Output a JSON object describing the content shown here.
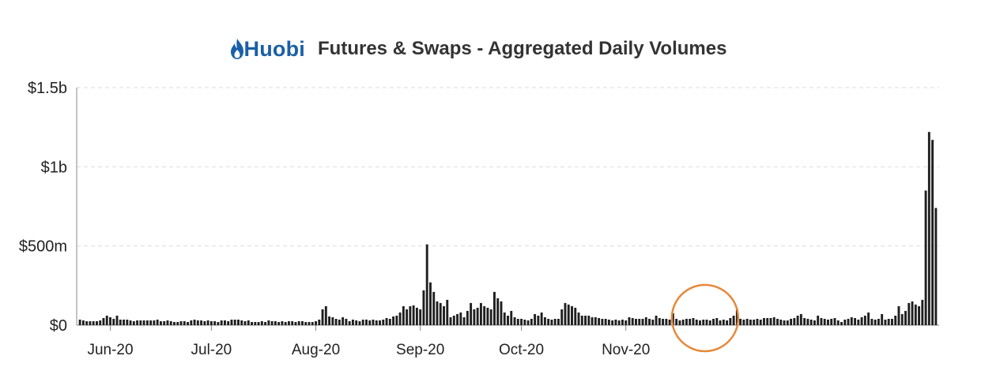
{
  "brand": {
    "name": "Huobi",
    "color": "#1b5fa8",
    "icon": "flame-drop-icon"
  },
  "colors": {
    "bar": "#1f1f1f",
    "highlight": "#e8883a",
    "grid": "#dddddd",
    "axis": "#888888"
  },
  "chart_data": {
    "type": "bar",
    "title": "Futures & Swaps - Aggregated Daily Volumes",
    "xlabel": "",
    "ylabel": "",
    "ylim": [
      0,
      1500
    ],
    "y_unit": "millions USD",
    "yticks": [
      {
        "value": 0,
        "label": "$0"
      },
      {
        "value": 500,
        "label": "$500m"
      },
      {
        "value": 1000,
        "label": "$1b"
      },
      {
        "value": 1500,
        "label": "$1.5b"
      }
    ],
    "grid": "horizontal dashed",
    "x_start": "2020-05-23",
    "xticks": [
      {
        "date": "2020-06-01",
        "label": "Jun-20"
      },
      {
        "date": "2020-07-01",
        "label": "Jul-20"
      },
      {
        "date": "2020-08-01",
        "label": "Aug-20"
      },
      {
        "date": "2020-09-01",
        "label": "Sep-20"
      },
      {
        "date": "2020-10-01",
        "label": "Oct-20"
      },
      {
        "date": "2020-11-01",
        "label": "Nov-20"
      }
    ],
    "annotation": {
      "shape": "circle",
      "dates": [
        "2020-11-24",
        "2020-11-25"
      ],
      "description": "peak highlight"
    },
    "values": [
      35,
      30,
      25,
      25,
      25,
      25,
      30,
      45,
      60,
      50,
      40,
      60,
      35,
      35,
      35,
      30,
      25,
      30,
      30,
      30,
      30,
      30,
      30,
      35,
      25,
      25,
      30,
      25,
      20,
      20,
      25,
      25,
      20,
      30,
      35,
      30,
      30,
      25,
      30,
      25,
      25,
      20,
      30,
      30,
      25,
      35,
      35,
      35,
      30,
      25,
      30,
      20,
      20,
      20,
      25,
      20,
      30,
      25,
      25,
      20,
      25,
      20,
      25,
      25,
      20,
      25,
      25,
      20,
      20,
      20,
      25,
      35,
      100,
      120,
      55,
      50,
      40,
      35,
      50,
      40,
      25,
      35,
      30,
      25,
      35,
      35,
      30,
      35,
      30,
      30,
      35,
      45,
      40,
      55,
      60,
      80,
      120,
      100,
      120,
      125,
      110,
      100,
      220,
      510,
      270,
      210,
      150,
      140,
      120,
      160,
      50,
      60,
      70,
      80,
      50,
      90,
      140,
      100,
      110,
      140,
      120,
      110,
      100,
      210,
      170,
      150,
      80,
      60,
      90,
      50,
      40,
      40,
      35,
      30,
      40,
      70,
      60,
      80,
      50,
      40,
      35,
      40,
      40,
      100,
      140,
      130,
      120,
      110,
      80,
      60,
      60,
      60,
      50,
      50,
      45,
      40,
      40,
      35,
      30,
      35,
      30,
      35,
      30,
      50,
      45,
      40,
      40,
      40,
      50,
      40,
      35,
      60,
      45,
      40,
      40,
      35,
      75,
      40,
      30,
      35,
      40,
      40,
      45,
      35,
      30,
      35,
      35,
      30,
      40,
      45,
      30,
      35,
      30,
      45,
      60,
      100,
      40,
      35,
      40,
      35,
      35,
      40,
      35,
      45,
      45,
      45,
      50,
      40,
      35,
      30,
      30,
      40,
      45,
      60,
      70,
      45,
      40,
      35,
      30,
      60,
      45,
      40,
      35,
      40,
      45,
      30,
      20,
      35,
      40,
      50,
      45,
      35,
      50,
      60,
      80,
      40,
      35,
      40,
      70,
      35,
      40,
      40,
      60,
      120,
      70,
      90,
      140,
      150,
      130,
      120,
      160,
      850,
      1220,
      1170,
      740
    ]
  }
}
